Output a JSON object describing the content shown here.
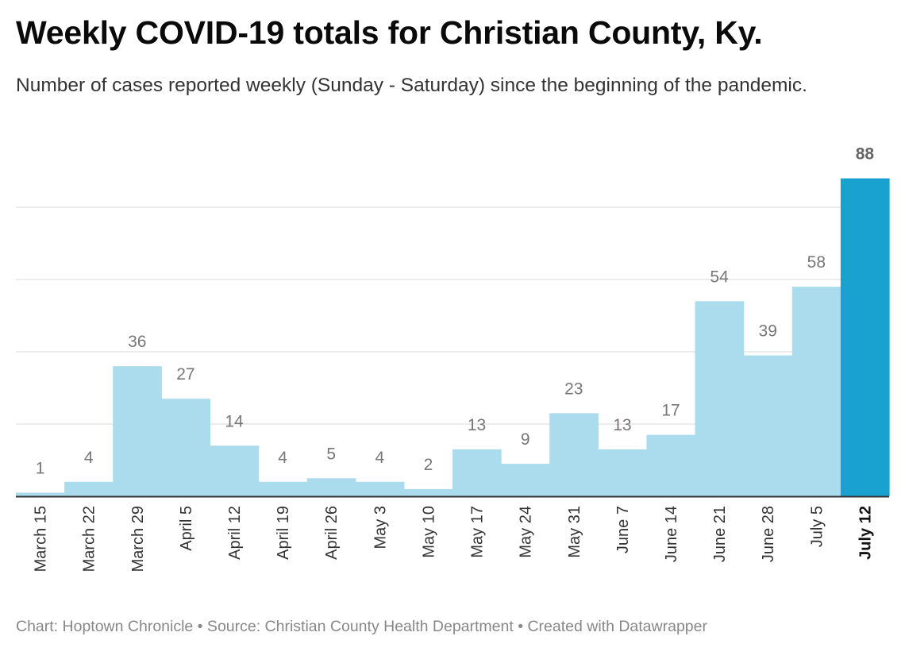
{
  "header": {
    "title": "Weekly COVID-19 totals for Christian County, Ky.",
    "subtitle": "Number of cases reported weekly (Sunday - Saturday) since the beginning of the pandemic."
  },
  "footer": {
    "credit_text": "Chart: Hoptown Chronicle • Source: Christian County Health Department • Created with Datawrapper"
  },
  "colors": {
    "bar": "#abdcee",
    "highlight_bar": "#19a1cf",
    "gridline": "#e5e5e5",
    "baseline": "#333333",
    "value_label": "#777777",
    "highlight_label": "#666666",
    "tick_label": "#333333",
    "highlight_tick": "#111111"
  },
  "chart_data": {
    "type": "bar",
    "categories": [
      "March 15",
      "March 22",
      "March 29",
      "April 5",
      "April 12",
      "April 19",
      "April 26",
      "May 3",
      "May 10",
      "May 17",
      "May 24",
      "May 31",
      "June 7",
      "June 14",
      "June 21",
      "June 28",
      "July 5",
      "July 12"
    ],
    "values": [
      1,
      4,
      36,
      27,
      14,
      4,
      5,
      4,
      2,
      13,
      9,
      23,
      13,
      17,
      54,
      39,
      58,
      88
    ],
    "highlight_index": 17,
    "ylim": [
      0,
      88
    ],
    "gridlines": [
      20,
      40,
      60,
      80
    ],
    "grid": true,
    "title": "",
    "xlabel": "",
    "ylabel": ""
  }
}
